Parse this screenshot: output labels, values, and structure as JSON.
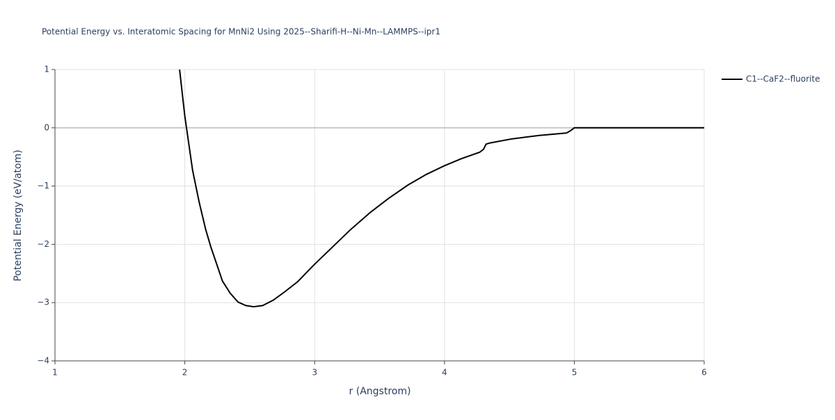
{
  "chart_data": {
    "type": "line",
    "title": "Potential Energy vs. Interatomic Spacing for MnNi2 Using 2025--Sharifi-H--Ni-Mn--LAMMPS--ipr1",
    "x_label": "r (Angstrom)",
    "y_label": "Potential Energy (eV/atom)",
    "xlim": [
      1,
      6
    ],
    "ylim": [
      -4,
      1
    ],
    "xticks": [
      1,
      2,
      3,
      4,
      5,
      6
    ],
    "yticks": [
      {
        "value": -4,
        "label": "−4"
      },
      {
        "value": -3,
        "label": "−3"
      },
      {
        "value": -2,
        "label": "−2"
      },
      {
        "value": -1,
        "label": "−1"
      },
      0,
      1
    ],
    "grid": true,
    "legend": "top-right",
    "x": [
      1.96,
      2.0,
      2.06,
      2.11,
      2.16,
      2.2,
      2.25,
      2.29,
      2.35,
      2.41,
      2.47,
      2.53,
      2.6,
      2.68,
      2.76,
      2.87,
      3.0,
      3.14,
      3.27,
      3.43,
      3.57,
      3.72,
      3.86,
      4.0,
      4.13,
      4.27,
      4.3,
      4.32,
      4.35,
      4.52,
      4.73,
      4.94,
      4.97,
      5.0,
      6.0
    ],
    "series": [
      {
        "name": "C1--CaF2--fluorite",
        "color": "#000000",
        "values": [
          1,
          0.2,
          -0.73,
          -1.27,
          -1.74,
          -2.04,
          -2.37,
          -2.63,
          -2.84,
          -2.99,
          -3.05,
          -3.07,
          -3.05,
          -2.96,
          -2.83,
          -2.64,
          -2.34,
          -2.04,
          -1.76,
          -1.45,
          -1.21,
          -0.98,
          -0.8,
          -0.65,
          -0.53,
          -0.42,
          -0.37,
          -0.28,
          -0.26,
          -0.19,
          -0.13,
          -0.09,
          -0.05,
          0,
          0
        ]
      }
    ]
  }
}
